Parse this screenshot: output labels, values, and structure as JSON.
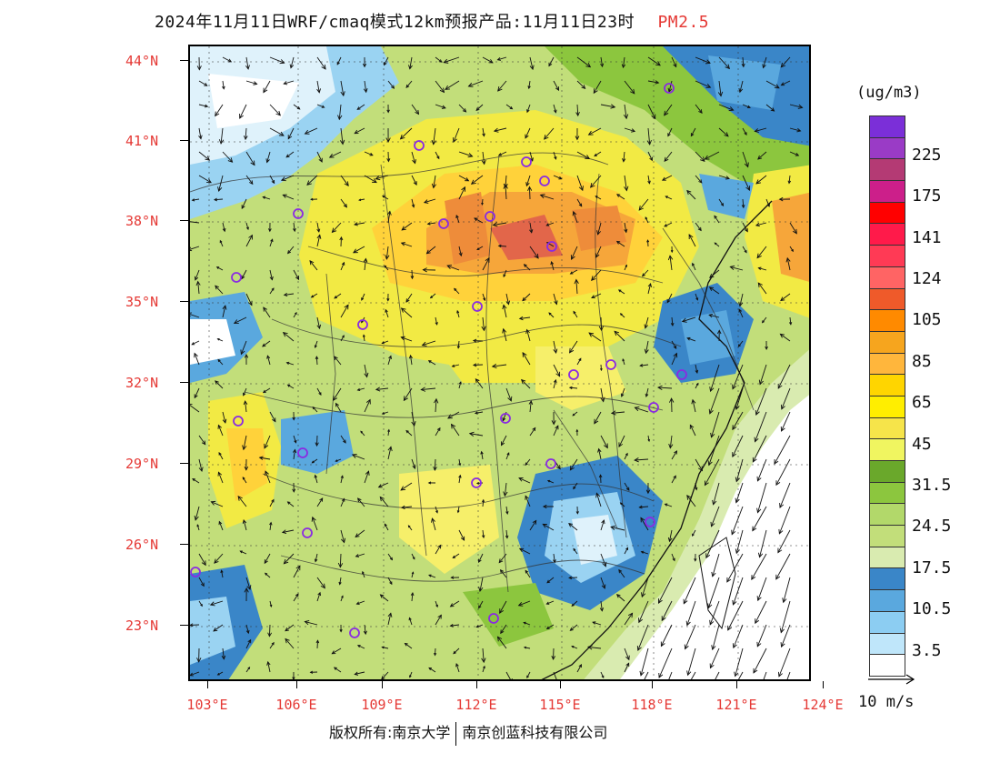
{
  "title": {
    "text": "2024年11月11日WRF/cmaq模式12km预报产品:11月11日23时",
    "pollutant": "PM2.5"
  },
  "map": {
    "background_color": "#7cc043",
    "lat_labels": [
      "44°N",
      "41°N",
      "38°N",
      "35°N",
      "32°N",
      "29°N",
      "26°N",
      "23°N"
    ],
    "lon_labels": [
      "103°E",
      "106°E",
      "109°E",
      "112°E",
      "115°E",
      "118°E",
      "121°E",
      "124°E"
    ],
    "station_marker_color": "#8a2be2"
  },
  "legend": {
    "unit": "(ug/m3)",
    "bins": [
      {
        "color": "#7b2fd8",
        "label": ""
      },
      {
        "color": "#9a3bc6",
        "label": "225"
      },
      {
        "color": "#b43a74",
        "label": ""
      },
      {
        "color": "#cc1f8a",
        "label": "175"
      },
      {
        "color": "#ff0000",
        "label": ""
      },
      {
        "color": "#ff1a4a",
        "label": "141"
      },
      {
        "color": "#ff3a55",
        "label": ""
      },
      {
        "color": "#ff6464",
        "label": "124"
      },
      {
        "color": "#ef5a2a",
        "label": ""
      },
      {
        "color": "#ff8a00",
        "label": "105"
      },
      {
        "color": "#f6a51e",
        "label": ""
      },
      {
        "color": "#ffb63c",
        "label": "85"
      },
      {
        "color": "#ffd500",
        "label": ""
      },
      {
        "color": "#ffee00",
        "label": "65"
      },
      {
        "color": "#f6e44a",
        "label": ""
      },
      {
        "color": "#f0f560",
        "label": "45"
      },
      {
        "color": "#6aa82b",
        "label": ""
      },
      {
        "color": "#8cc63e",
        "label": "31.5"
      },
      {
        "color": "#b2d86a",
        "label": ""
      },
      {
        "color": "#c2de7a",
        "label": "24.5"
      },
      {
        "color": "#d9ebb0",
        "label": ""
      },
      {
        "color": "#3a86c8",
        "label": "17.5"
      },
      {
        "color": "#5aa8de",
        "label": ""
      },
      {
        "color": "#8ccdf2",
        "label": "10.5"
      },
      {
        "color": "#bfe6fa",
        "label": ""
      },
      {
        "color": "#ffffff",
        "label": "3.5"
      }
    ]
  },
  "wind_reference": {
    "label": "10 m/s"
  },
  "footer": {
    "owner": "版权所有:南京大学",
    "company": "南京创蓝科技有限公司"
  }
}
